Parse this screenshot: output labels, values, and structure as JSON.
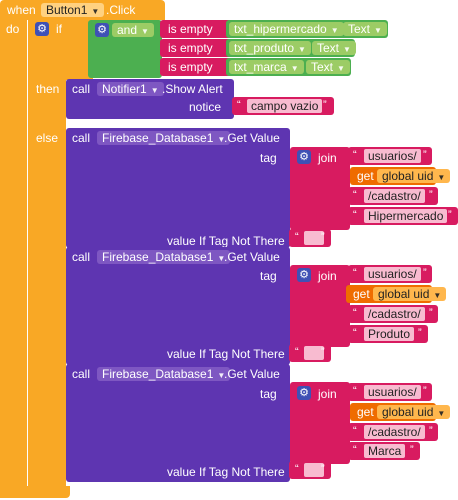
{
  "event": {
    "when": "when",
    "component": "Button1",
    "event": ".Click",
    "do": "do"
  },
  "if_block": {
    "if": "if",
    "then": "then",
    "else": "else"
  },
  "and_block": {
    "label": "and"
  },
  "is_empty": [
    {
      "label": "is empty",
      "component": "txt_hipermercado",
      "prop": "Text"
    },
    {
      "label": "is empty",
      "component": "txt_produto",
      "prop": "Text"
    },
    {
      "label": "is empty",
      "component": "txt_marca",
      "prop": "Text"
    }
  ],
  "alert": {
    "call": "call",
    "component": "Notifier1",
    "method": ".Show Alert",
    "param": "notice",
    "value": "campo vazio"
  },
  "firebase_calls": [
    {
      "call": "call",
      "component": "Firebase_Database1",
      "method": ".Get Value",
      "tag": "tag",
      "join": "join",
      "parts": [
        "usuarios/",
        "global uid",
        "/cadastro/",
        "Hipermercado"
      ],
      "get": "get",
      "value_if": "value If Tag Not There",
      "empty": ""
    },
    {
      "call": "call",
      "component": "Firebase_Database1",
      "method": ".Get Value",
      "tag": "tag",
      "join": "join",
      "parts": [
        "usuarios/",
        "global uid",
        "/cadastro/",
        "Produto"
      ],
      "get": "get",
      "value_if": "value If Tag Not There",
      "empty": ""
    },
    {
      "call": "call",
      "component": "Firebase_Database1",
      "method": ".Get Value",
      "tag": "tag",
      "join": "join",
      "parts": [
        "usuarios/",
        "global uid",
        "/cadastro/",
        "Marca"
      ],
      "get": "get",
      "value_if": "value If Tag Not There",
      "empty": ""
    }
  ],
  "colors": {
    "event": "#f9a825",
    "logic": "#4caf50",
    "text": "#d81b60",
    "component": "#5e35b1",
    "variable": "#ef6c00"
  }
}
